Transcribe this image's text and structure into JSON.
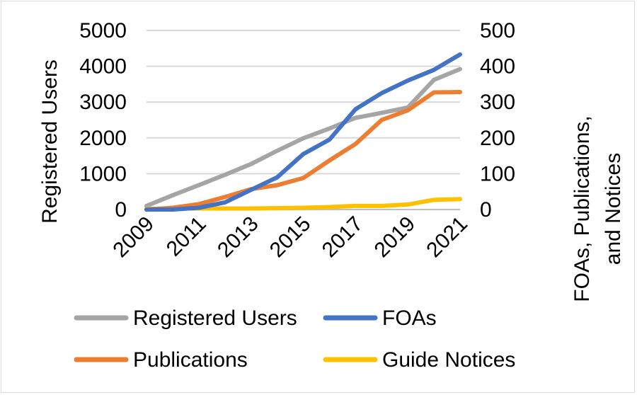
{
  "chart_data": {
    "type": "line",
    "title": "",
    "xlabel": "",
    "ylabel": "Registered Users",
    "y2label_lines": [
      "FOAs, Publications,",
      "and Notices"
    ],
    "x": [
      2009,
      2010,
      2011,
      2012,
      2013,
      2014,
      2015,
      2016,
      2017,
      2018,
      2019,
      2020,
      2021
    ],
    "x_tick_labels": [
      "2009",
      "2011",
      "2013",
      "2015",
      "2017",
      "2019",
      "2021"
    ],
    "ylim": [
      0,
      5000
    ],
    "y_ticks": [
      "0",
      "1000",
      "2000",
      "3000",
      "4000",
      "5000"
    ],
    "y2lim": [
      0,
      500
    ],
    "y2_ticks": [
      "0",
      "100",
      "200",
      "300",
      "400",
      "500"
    ],
    "grid": true,
    "legend_position": "bottom",
    "series": [
      {
        "name": "Registered Users",
        "axis": "left",
        "color": "#a5a5a5",
        "values": [
          100,
          400,
          680,
          970,
          1270,
          1640,
          1990,
          2260,
          2560,
          2700,
          2850,
          3620,
          3920
        ]
      },
      {
        "name": "FOAs",
        "axis": "right",
        "color": "#4472c4",
        "values": [
          0,
          0,
          5,
          20,
          55,
          90,
          155,
          195,
          280,
          325,
          360,
          390,
          433
        ]
      },
      {
        "name": "Publications",
        "axis": "right",
        "color": "#ed7d31",
        "values": [
          0,
          5,
          15,
          35,
          57,
          68,
          88,
          137,
          183,
          250,
          277,
          327,
          328
        ]
      },
      {
        "name": "Guide Notices",
        "axis": "right",
        "color": "#ffc000",
        "values": [
          2,
          3,
          3,
          3,
          3,
          4,
          5,
          7,
          10,
          10,
          14,
          27,
          29
        ]
      }
    ]
  }
}
